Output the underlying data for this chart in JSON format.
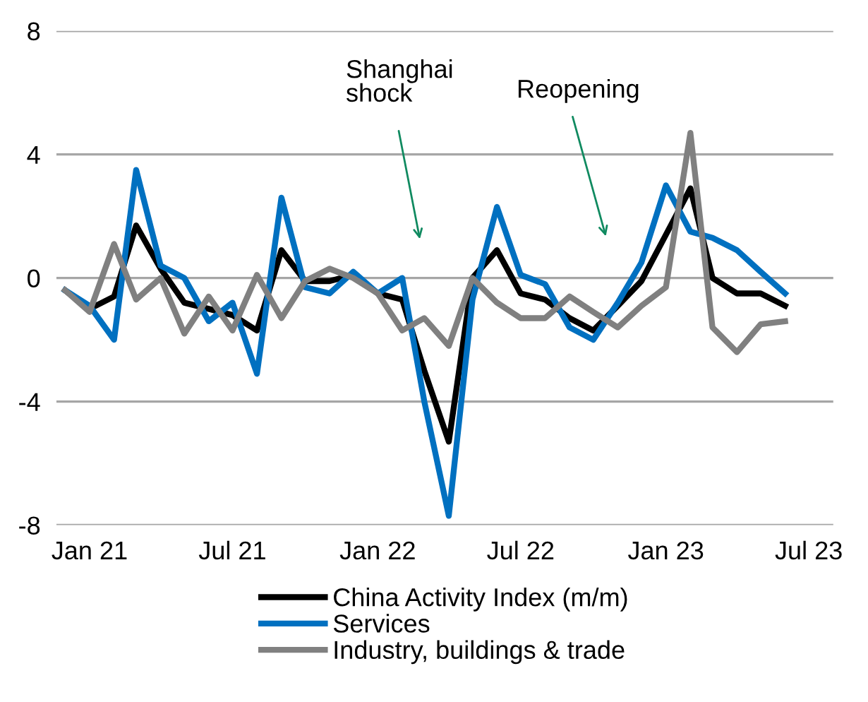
{
  "chart_data": {
    "type": "line",
    "x": [
      "2020-12",
      "2021-01",
      "2021-02",
      "2021-03",
      "2021-04",
      "2021-05",
      "2021-06",
      "2021-07",
      "2021-08",
      "2021-09",
      "2021-10",
      "2021-11",
      "2021-12",
      "2022-01",
      "2022-02",
      "2022-03",
      "2022-04",
      "2022-05",
      "2022-06",
      "2022-07",
      "2022-08",
      "2022-09",
      "2022-10",
      "2022-11",
      "2022-12",
      "2023-01",
      "2023-02",
      "2023-03",
      "2023-04",
      "2023-05",
      "2023-06"
    ],
    "series": [
      {
        "name": "China Activity Index (m/m)",
        "color": "#000000",
        "values": [
          -0.4,
          -1.0,
          -0.6,
          1.7,
          0.3,
          -0.8,
          -1.0,
          -1.2,
          -1.7,
          0.9,
          -0.1,
          -0.1,
          0.1,
          -0.5,
          -0.7,
          -3.0,
          -5.3,
          0.0,
          0.9,
          -0.5,
          -0.7,
          -1.3,
          -1.7,
          -0.9,
          -0.1,
          1.4,
          2.9,
          0.0,
          -0.5,
          -0.5,
          -0.9
        ]
      },
      {
        "name": "Services",
        "color": "#0070c0",
        "values": [
          -0.4,
          -0.9,
          -2.0,
          3.5,
          0.4,
          0.0,
          -1.4,
          -0.8,
          -3.1,
          2.6,
          -0.3,
          -0.5,
          0.2,
          -0.5,
          0.0,
          -4.0,
          -7.7,
          -0.7,
          2.3,
          0.1,
          -0.2,
          -1.6,
          -2.0,
          -0.8,
          0.5,
          3.0,
          1.5,
          1.3,
          0.9,
          0.2,
          -0.5
        ]
      },
      {
        "name": "Industry, buildings & trade",
        "color": "#808080",
        "values": [
          -0.4,
          -1.1,
          1.1,
          -0.7,
          0.0,
          -1.8,
          -0.6,
          -1.7,
          0.1,
          -1.3,
          -0.1,
          0.3,
          0.0,
          -0.5,
          -1.7,
          -1.3,
          -2.2,
          0.0,
          -0.8,
          -1.3,
          -1.3,
          -0.6,
          -1.1,
          -1.6,
          -0.9,
          -0.3,
          4.7,
          -1.6,
          -2.4,
          -1.5,
          -1.4
        ]
      }
    ],
    "xlim": [
      "2020-11-20",
      "2023-08-01"
    ],
    "xticks": [
      {
        "value": "2021-01",
        "label": "Jan 21"
      },
      {
        "value": "2021-07",
        "label": "Jul 21"
      },
      {
        "value": "2022-01",
        "label": "Jan 22"
      },
      {
        "value": "2022-07",
        "label": "Jul 22"
      },
      {
        "value": "2023-01",
        "label": "Jan 23"
      },
      {
        "value": "2023-07",
        "label": "Jul 23"
      }
    ],
    "ylim": [
      -8,
      8
    ],
    "yticks": [
      -8,
      -4,
      0,
      4,
      8
    ],
    "grid": "y",
    "legend": "bottom",
    "marker": "none",
    "line_style": "solid",
    "annotations": [
      "Shanghai\nshock",
      "Reopening"
    ]
  }
}
